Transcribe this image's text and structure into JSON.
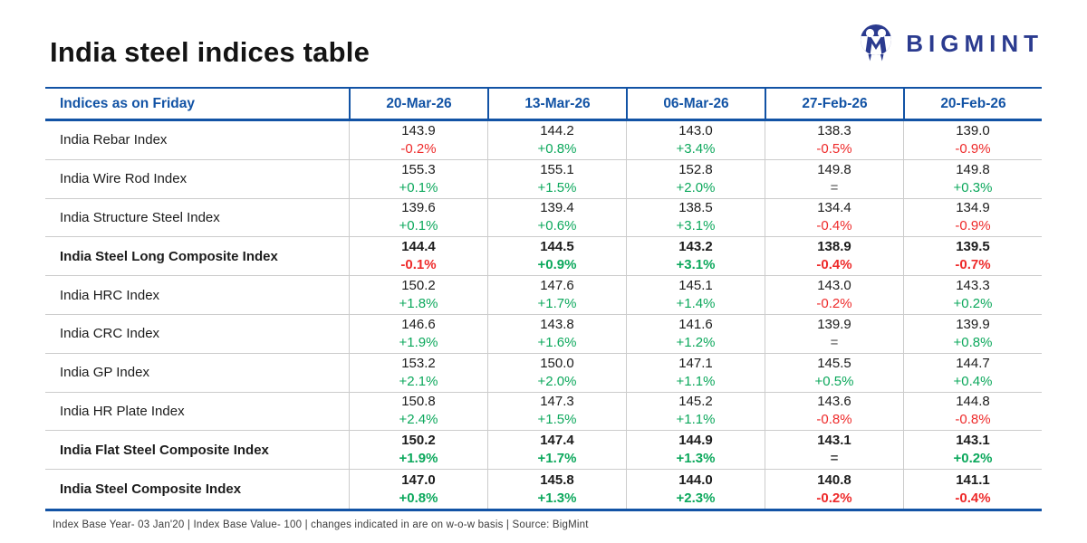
{
  "title": "India steel indices table",
  "logo_text": "BIGMINT",
  "footer_note": "Index Base Year- 03 Jan'20 | Index Base Value- 100 | changes indicated in are on w-o-w basis | Source: BigMint",
  "colors": {
    "header_blue": "#1253a5",
    "logo_navy": "#2b3b8f",
    "positive_green": "#0ca85c",
    "negative_red": "#ee2a2a",
    "neutral_gray": "#4d4d4d",
    "row_divider": "#cccccc",
    "text_dark": "#1c1c1c"
  },
  "chart_data": {
    "type": "table",
    "title": "India steel indices table",
    "columns": [
      "Indices as on Friday",
      "20-Mar-26",
      "13-Mar-26",
      "06-Mar-26",
      "27-Feb-26",
      "20-Feb-26"
    ],
    "rows": [
      {
        "name": "India Rebar Index",
        "bold": false,
        "cells": [
          {
            "v": "143.9",
            "c": "-0.2%",
            "t": "down"
          },
          {
            "v": "144.2",
            "c": "+0.8%",
            "t": "up"
          },
          {
            "v": "143.0",
            "c": "+3.4%",
            "t": "up"
          },
          {
            "v": "138.3",
            "c": "-0.5%",
            "t": "down"
          },
          {
            "v": "139.0",
            "c": "-0.9%",
            "t": "down"
          }
        ]
      },
      {
        "name": "India Wire Rod Index",
        "bold": false,
        "cells": [
          {
            "v": "155.3",
            "c": "+0.1%",
            "t": "up"
          },
          {
            "v": "155.1",
            "c": "+1.5%",
            "t": "up"
          },
          {
            "v": "152.8",
            "c": "+2.0%",
            "t": "up"
          },
          {
            "v": "149.8",
            "c": "=",
            "t": "flat"
          },
          {
            "v": "149.8",
            "c": "+0.3%",
            "t": "up"
          }
        ]
      },
      {
        "name": "India Structure Steel Index",
        "bold": false,
        "cells": [
          {
            "v": "139.6",
            "c": "+0.1%",
            "t": "up"
          },
          {
            "v": "139.4",
            "c": "+0.6%",
            "t": "up"
          },
          {
            "v": "138.5",
            "c": "+3.1%",
            "t": "up"
          },
          {
            "v": "134.4",
            "c": "-0.4%",
            "t": "down"
          },
          {
            "v": "134.9",
            "c": "-0.9%",
            "t": "down"
          }
        ]
      },
      {
        "name": "India Steel Long Composite Index",
        "bold": true,
        "cells": [
          {
            "v": "144.4",
            "c": "-0.1%",
            "t": "down"
          },
          {
            "v": "144.5",
            "c": "+0.9%",
            "t": "up"
          },
          {
            "v": "143.2",
            "c": "+3.1%",
            "t": "up"
          },
          {
            "v": "138.9",
            "c": "-0.4%",
            "t": "down"
          },
          {
            "v": "139.5",
            "c": "-0.7%",
            "t": "down"
          }
        ]
      },
      {
        "name": "India HRC Index",
        "bold": false,
        "cells": [
          {
            "v": "150.2",
            "c": "+1.8%",
            "t": "up"
          },
          {
            "v": "147.6",
            "c": "+1.7%",
            "t": "up"
          },
          {
            "v": "145.1",
            "c": "+1.4%",
            "t": "up"
          },
          {
            "v": "143.0",
            "c": "-0.2%",
            "t": "down"
          },
          {
            "v": "143.3",
            "c": "+0.2%",
            "t": "up"
          }
        ]
      },
      {
        "name": "India CRC Index",
        "bold": false,
        "cells": [
          {
            "v": "146.6",
            "c": "+1.9%",
            "t": "up"
          },
          {
            "v": "143.8",
            "c": "+1.6%",
            "t": "up"
          },
          {
            "v": "141.6",
            "c": "+1.2%",
            "t": "up"
          },
          {
            "v": "139.9",
            "c": "=",
            "t": "flat"
          },
          {
            "v": "139.9",
            "c": "+0.8%",
            "t": "up"
          }
        ]
      },
      {
        "name": "India GP Index",
        "bold": false,
        "cells": [
          {
            "v": "153.2",
            "c": "+2.1%",
            "t": "up"
          },
          {
            "v": "150.0",
            "c": "+2.0%",
            "t": "up"
          },
          {
            "v": "147.1",
            "c": "+1.1%",
            "t": "up"
          },
          {
            "v": "145.5",
            "c": "+0.5%",
            "t": "up"
          },
          {
            "v": "144.7",
            "c": "+0.4%",
            "t": "up"
          }
        ]
      },
      {
        "name": "India HR Plate Index",
        "bold": false,
        "cells": [
          {
            "v": "150.8",
            "c": "+2.4%",
            "t": "up"
          },
          {
            "v": "147.3",
            "c": "+1.5%",
            "t": "up"
          },
          {
            "v": "145.2",
            "c": "+1.1%",
            "t": "up"
          },
          {
            "v": "143.6",
            "c": "-0.8%",
            "t": "down"
          },
          {
            "v": "144.8",
            "c": "-0.8%",
            "t": "down"
          }
        ]
      },
      {
        "name": "India Flat Steel Composite Index",
        "bold": true,
        "cells": [
          {
            "v": "150.2",
            "c": "+1.9%",
            "t": "up"
          },
          {
            "v": "147.4",
            "c": "+1.7%",
            "t": "up"
          },
          {
            "v": "144.9",
            "c": "+1.3%",
            "t": "up"
          },
          {
            "v": "143.1",
            "c": "=",
            "t": "flat"
          },
          {
            "v": "143.1",
            "c": "+0.2%",
            "t": "up"
          }
        ]
      },
      {
        "name": "India Steel Composite Index",
        "bold": true,
        "cells": [
          {
            "v": "147.0",
            "c": "+0.8%",
            "t": "up"
          },
          {
            "v": "145.8",
            "c": "+1.3%",
            "t": "up"
          },
          {
            "v": "144.0",
            "c": "+2.3%",
            "t": "up"
          },
          {
            "v": "140.8",
            "c": "-0.2%",
            "t": "down"
          },
          {
            "v": "141.1",
            "c": "-0.4%",
            "t": "down"
          }
        ]
      }
    ]
  }
}
